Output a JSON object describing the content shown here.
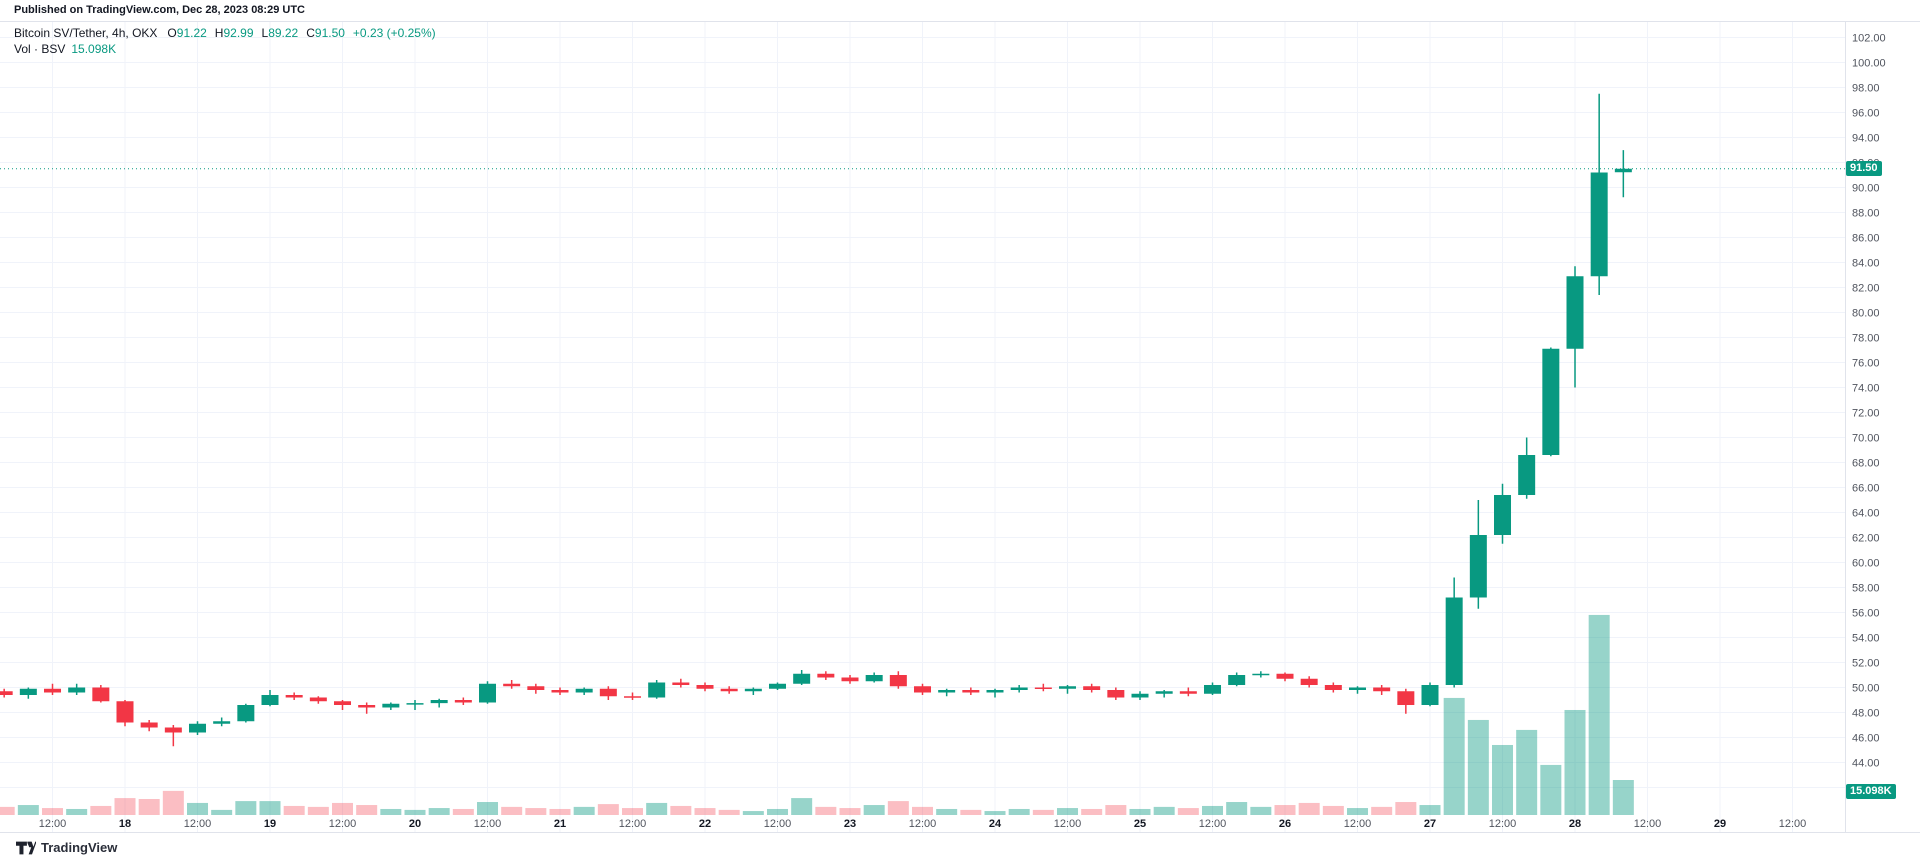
{
  "header": {
    "published": "Published on TradingView.com, Dec 28, 2023 08:29 UTC",
    "symbol": "Bitcoin SV/Tether, 4h, OKX",
    "ohlc": [
      {
        "label": "O",
        "value": "91.22"
      },
      {
        "label": "H",
        "value": "92.99"
      },
      {
        "label": "L",
        "value": "89.22"
      },
      {
        "label": "C",
        "value": "91.50"
      }
    ],
    "change": "+0.23 (+0.25%)",
    "volume_row": {
      "label": "Vol · BSV",
      "value": "15.098K"
    }
  },
  "badges": {
    "price": "91.50",
    "volume": "15.098K"
  },
  "logo": {
    "text": "TradingView"
  },
  "colors": {
    "up": "#089981",
    "down": "#F23645",
    "up_volume": "rgba(8,153,129,0.42)",
    "down_volume": "rgba(242,54,69,0.32)",
    "grid": "#f0f3fa",
    "border": "#e0e3eb",
    "axis_text": "#50545e",
    "day_text": "#131722",
    "current_price_line": "#089981"
  },
  "axes": {
    "price_ticks": [
      "102.00",
      "100.00",
      "98.00",
      "96.00",
      "94.00",
      "92.00",
      "90.00",
      "88.00",
      "86.00",
      "84.00",
      "82.00",
      "80.00",
      "78.00",
      "76.00",
      "74.00",
      "72.00",
      "70.00",
      "68.00",
      "66.00",
      "64.00",
      "62.00",
      "60.00",
      "58.00",
      "56.00",
      "54.00",
      "52.00",
      "50.00",
      "48.00",
      "46.00",
      "44.00",
      "42.00"
    ],
    "time_ticks": [
      "12:00",
      "18",
      "12:00",
      "19",
      "12:00",
      "20",
      "12:00",
      "21",
      "12:00",
      "22",
      "12:00",
      "23",
      "12:00",
      "24",
      "12:00",
      "25",
      "12:00",
      "26",
      "12:00",
      "27",
      "12:00",
      "28",
      "12:00",
      "29",
      "12:00"
    ]
  },
  "chart_data": {
    "type": "candlestick",
    "symbol": "BSVUSDT",
    "exchange": "OKX",
    "interval": "4h",
    "title": "Bitcoin SV / Tether, 4h, OKX",
    "price_axis": {
      "min": 42,
      "max": 102,
      "step": 2
    },
    "current_price": 91.5,
    "current_volume_k": 15.098,
    "volume_unit": "K",
    "legend": [
      "Vol - BSV"
    ],
    "candles": [
      {
        "t": "Dec 17 04:00",
        "o": 49.7,
        "h": 49.9,
        "l": 49.2,
        "c": 49.4,
        "v": 3.5
      },
      {
        "t": "Dec 17 08:00",
        "o": 49.4,
        "h": 50.0,
        "l": 49.1,
        "c": 49.9,
        "v": 4.3
      },
      {
        "t": "Dec 17 12:00",
        "o": 49.9,
        "h": 50.3,
        "l": 49.4,
        "c": 49.6,
        "v": 3.0
      },
      {
        "t": "Dec 17 16:00",
        "o": 49.6,
        "h": 50.3,
        "l": 49.4,
        "c": 50.0,
        "v": 2.6
      },
      {
        "t": "Dec 17 20:00",
        "o": 50.0,
        "h": 50.2,
        "l": 48.8,
        "c": 48.9,
        "v": 3.9
      },
      {
        "t": "Dec 18 00:00",
        "o": 48.9,
        "h": 49.0,
        "l": 46.9,
        "c": 47.2,
        "v": 7.3
      },
      {
        "t": "Dec 18 04:00",
        "o": 47.2,
        "h": 47.4,
        "l": 46.5,
        "c": 46.8,
        "v": 6.9
      },
      {
        "t": "Dec 18 08:00",
        "o": 46.8,
        "h": 47.0,
        "l": 45.3,
        "c": 46.4,
        "v": 10.4
      },
      {
        "t": "Dec 18 12:00",
        "o": 46.4,
        "h": 47.3,
        "l": 46.2,
        "c": 47.1,
        "v": 5.2
      },
      {
        "t": "Dec 18 16:00",
        "o": 47.1,
        "h": 47.6,
        "l": 46.9,
        "c": 47.3,
        "v": 2.2
      },
      {
        "t": "Dec 18 20:00",
        "o": 47.3,
        "h": 48.7,
        "l": 47.2,
        "c": 48.6,
        "v": 6.0
      },
      {
        "t": "Dec 19 00:00",
        "o": 48.6,
        "h": 49.8,
        "l": 48.5,
        "c": 49.4,
        "v": 6.0
      },
      {
        "t": "Dec 19 04:00",
        "o": 49.4,
        "h": 49.6,
        "l": 49.0,
        "c": 49.2,
        "v": 3.9
      },
      {
        "t": "Dec 19 08:00",
        "o": 49.2,
        "h": 49.3,
        "l": 48.7,
        "c": 48.9,
        "v": 3.5
      },
      {
        "t": "Dec 19 12:00",
        "o": 48.9,
        "h": 49.0,
        "l": 48.2,
        "c": 48.6,
        "v": 5.2
      },
      {
        "t": "Dec 19 16:00",
        "o": 48.6,
        "h": 48.8,
        "l": 47.9,
        "c": 48.4,
        "v": 4.3
      },
      {
        "t": "Dec 19 20:00",
        "o": 48.4,
        "h": 48.8,
        "l": 48.2,
        "c": 48.7,
        "v": 2.6
      },
      {
        "t": "Dec 20 00:00",
        "o": 48.7,
        "h": 49.0,
        "l": 48.2,
        "c": 48.75,
        "v": 2.2
      },
      {
        "t": "Dec 20 04:00",
        "o": 48.75,
        "h": 49.1,
        "l": 48.4,
        "c": 49.0,
        "v": 3.0
      },
      {
        "t": "Dec 20 08:00",
        "o": 49.0,
        "h": 49.2,
        "l": 48.6,
        "c": 48.8,
        "v": 2.6
      },
      {
        "t": "Dec 20 12:00",
        "o": 48.8,
        "h": 50.5,
        "l": 48.7,
        "c": 50.3,
        "v": 5.6
      },
      {
        "t": "Dec 20 16:00",
        "o": 50.3,
        "h": 50.6,
        "l": 49.9,
        "c": 50.1,
        "v": 3.5
      },
      {
        "t": "Dec 20 20:00",
        "o": 50.1,
        "h": 50.3,
        "l": 49.5,
        "c": 49.8,
        "v": 3.0
      },
      {
        "t": "Dec 21 00:00",
        "o": 49.8,
        "h": 50.0,
        "l": 49.4,
        "c": 49.6,
        "v": 2.6
      },
      {
        "t": "Dec 21 04:00",
        "o": 49.6,
        "h": 50.0,
        "l": 49.4,
        "c": 49.9,
        "v": 3.5
      },
      {
        "t": "Dec 21 08:00",
        "o": 49.9,
        "h": 50.1,
        "l": 49.0,
        "c": 49.3,
        "v": 4.7
      },
      {
        "t": "Dec 21 12:00",
        "o": 49.3,
        "h": 49.6,
        "l": 49.0,
        "c": 49.2,
        "v": 3.0
      },
      {
        "t": "Dec 21 16:00",
        "o": 49.2,
        "h": 50.6,
        "l": 49.1,
        "c": 50.4,
        "v": 5.2
      },
      {
        "t": "Dec 21 20:00",
        "o": 50.4,
        "h": 50.7,
        "l": 50.0,
        "c": 50.2,
        "v": 3.9
      },
      {
        "t": "Dec 22 00:00",
        "o": 50.2,
        "h": 50.4,
        "l": 49.7,
        "c": 49.9,
        "v": 3.0
      },
      {
        "t": "Dec 22 04:00",
        "o": 49.9,
        "h": 50.1,
        "l": 49.5,
        "c": 49.7,
        "v": 2.2
      },
      {
        "t": "Dec 22 08:00",
        "o": 49.7,
        "h": 50.0,
        "l": 49.4,
        "c": 49.9,
        "v": 1.7
      },
      {
        "t": "Dec 22 12:00",
        "o": 49.9,
        "h": 50.4,
        "l": 49.8,
        "c": 50.3,
        "v": 2.6
      },
      {
        "t": "Dec 22 16:00",
        "o": 50.3,
        "h": 51.4,
        "l": 50.2,
        "c": 51.1,
        "v": 7.3
      },
      {
        "t": "Dec 22 20:00",
        "o": 51.1,
        "h": 51.3,
        "l": 50.6,
        "c": 50.8,
        "v": 3.5
      },
      {
        "t": "Dec 23 00:00",
        "o": 50.8,
        "h": 51.0,
        "l": 50.3,
        "c": 50.5,
        "v": 3.0
      },
      {
        "t": "Dec 23 04:00",
        "o": 50.5,
        "h": 51.2,
        "l": 50.4,
        "c": 51.0,
        "v": 4.3
      },
      {
        "t": "Dec 23 08:00",
        "o": 51.0,
        "h": 51.3,
        "l": 49.9,
        "c": 50.1,
        "v": 6.0
      },
      {
        "t": "Dec 23 12:00",
        "o": 50.1,
        "h": 50.3,
        "l": 49.4,
        "c": 49.6,
        "v": 3.5
      },
      {
        "t": "Dec 23 16:00",
        "o": 49.6,
        "h": 49.9,
        "l": 49.3,
        "c": 49.8,
        "v": 2.6
      },
      {
        "t": "Dec 23 20:00",
        "o": 49.8,
        "h": 50.0,
        "l": 49.4,
        "c": 49.6,
        "v": 2.2
      },
      {
        "t": "Dec 24 00:00",
        "o": 49.6,
        "h": 49.9,
        "l": 49.2,
        "c": 49.8,
        "v": 1.7
      },
      {
        "t": "Dec 24 04:00",
        "o": 49.8,
        "h": 50.2,
        "l": 49.6,
        "c": 50.0,
        "v": 2.6
      },
      {
        "t": "Dec 24 08:00",
        "o": 50.0,
        "h": 50.3,
        "l": 49.7,
        "c": 49.9,
        "v": 2.2
      },
      {
        "t": "Dec 24 12:00",
        "o": 49.9,
        "h": 50.2,
        "l": 49.5,
        "c": 50.1,
        "v": 3.0
      },
      {
        "t": "Dec 24 16:00",
        "o": 50.1,
        "h": 50.3,
        "l": 49.6,
        "c": 49.8,
        "v": 2.6
      },
      {
        "t": "Dec 24 20:00",
        "o": 49.8,
        "h": 50.0,
        "l": 49.0,
        "c": 49.2,
        "v": 4.3
      },
      {
        "t": "Dec 25 00:00",
        "o": 49.2,
        "h": 49.7,
        "l": 49.0,
        "c": 49.5,
        "v": 2.6
      },
      {
        "t": "Dec 25 04:00",
        "o": 49.5,
        "h": 49.8,
        "l": 49.2,
        "c": 49.7,
        "v": 3.5
      },
      {
        "t": "Dec 25 08:00",
        "o": 49.7,
        "h": 50.0,
        "l": 49.3,
        "c": 49.5,
        "v": 3.0
      },
      {
        "t": "Dec 25 12:00",
        "o": 49.5,
        "h": 50.4,
        "l": 49.4,
        "c": 50.2,
        "v": 3.9
      },
      {
        "t": "Dec 25 16:00",
        "o": 50.2,
        "h": 51.2,
        "l": 50.1,
        "c": 51.0,
        "v": 5.6
      },
      {
        "t": "Dec 25 20:00",
        "o": 51.0,
        "h": 51.3,
        "l": 50.8,
        "c": 51.1,
        "v": 3.5
      },
      {
        "t": "Dec 26 00:00",
        "o": 51.1,
        "h": 51.2,
        "l": 50.5,
        "c": 50.7,
        "v": 4.3
      },
      {
        "t": "Dec 26 04:00",
        "o": 50.7,
        "h": 50.9,
        "l": 50.0,
        "c": 50.2,
        "v": 5.2
      },
      {
        "t": "Dec 26 08:00",
        "o": 50.2,
        "h": 50.4,
        "l": 49.6,
        "c": 49.8,
        "v": 3.9
      },
      {
        "t": "Dec 26 12:00",
        "o": 49.8,
        "h": 50.1,
        "l": 49.5,
        "c": 50.0,
        "v": 3.0
      },
      {
        "t": "Dec 26 16:00",
        "o": 50.0,
        "h": 50.2,
        "l": 49.4,
        "c": 49.7,
        "v": 3.5
      },
      {
        "t": "Dec 26 20:00",
        "o": 49.7,
        "h": 49.9,
        "l": 47.9,
        "c": 48.6,
        "v": 5.6
      },
      {
        "t": "Dec 27 00:00",
        "o": 48.6,
        "h": 50.4,
        "l": 48.5,
        "c": 50.2,
        "v": 4.3
      },
      {
        "t": "Dec 27 04:00",
        "o": 50.2,
        "h": 58.8,
        "l": 50.0,
        "c": 57.2,
        "v": 50.5
      },
      {
        "t": "Dec 27 08:00",
        "o": 57.2,
        "h": 65.0,
        "l": 56.3,
        "c": 62.2,
        "v": 41.0
      },
      {
        "t": "Dec 27 12:00",
        "o": 62.2,
        "h": 66.3,
        "l": 61.5,
        "c": 65.4,
        "v": 30.2
      },
      {
        "t": "Dec 27 16:00",
        "o": 65.4,
        "h": 70.0,
        "l": 65.1,
        "c": 68.6,
        "v": 36.7
      },
      {
        "t": "Dec 27 20:00",
        "o": 68.6,
        "h": 77.2,
        "l": 68.5,
        "c": 77.1,
        "v": 21.6
      },
      {
        "t": "Dec 28 00:00",
        "o": 77.1,
        "h": 83.7,
        "l": 74.0,
        "c": 82.9,
        "v": 45.3
      },
      {
        "t": "Dec 28 04:00",
        "o": 82.9,
        "h": 97.5,
        "l": 81.4,
        "c": 91.2,
        "v": 86.3
      },
      {
        "t": "Dec 28 08:00",
        "o": 91.22,
        "h": 92.99,
        "l": 89.22,
        "c": 91.5,
        "v": 15.098
      }
    ]
  }
}
